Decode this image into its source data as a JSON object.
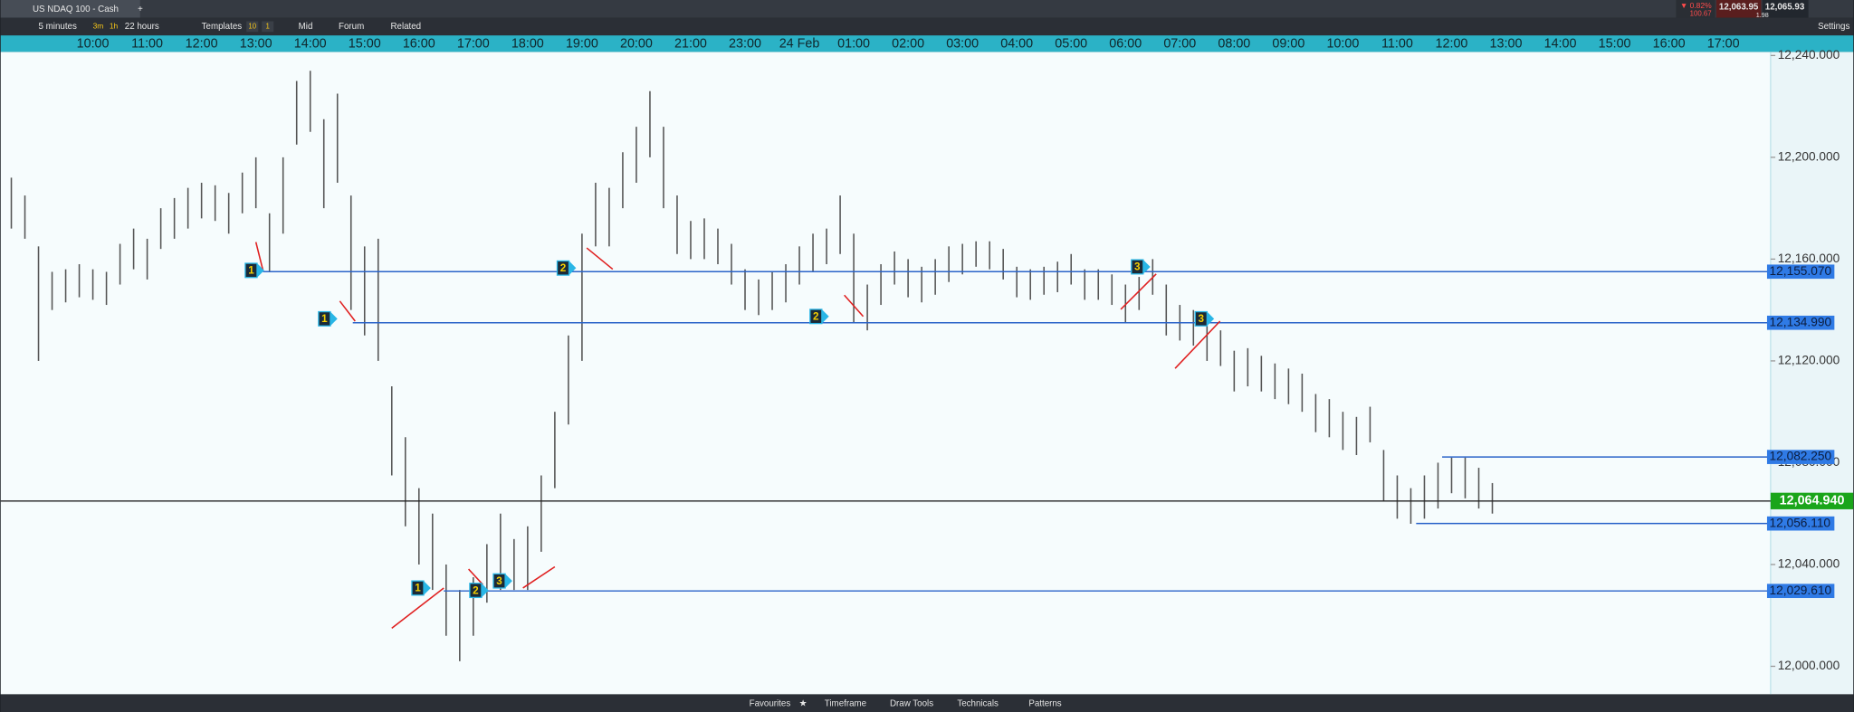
{
  "header": {
    "title": "US NDAQ 100 - Cash",
    "change": "▼ 0.82%",
    "change_points": "100.67",
    "sell": "12,063.95",
    "buy": "12,065.93",
    "spread": "1.98",
    "settings": "Settings"
  },
  "toolbar": {
    "timeframe": "5 minutes",
    "quick_3m": "3m",
    "quick_1h": "1h",
    "range": "22 hours",
    "templates": "Templates",
    "badge_a": "10",
    "badge_b": "1",
    "mid": "Mid",
    "forum": "Forum",
    "related": "Related"
  },
  "footer": {
    "favourites": "Favourites",
    "timeframe": "Timeframe",
    "draw_tools": "Draw Tools",
    "technicals": "Technicals",
    "patterns": "Patterns"
  },
  "chart": {
    "type": "ohlc",
    "time_labels": [
      "10:00",
      "11:00",
      "12:00",
      "13:00",
      "14:00",
      "15:00",
      "16:00",
      "17:00",
      "18:00",
      "19:00",
      "20:00",
      "21:00",
      "23:00",
      "24 Feb",
      "01:00",
      "02:00",
      "03:00",
      "04:00",
      "05:00",
      "06:00",
      "07:00",
      "08:00",
      "09:00",
      "10:00",
      "11:00",
      "12:00",
      "13:00",
      "14:00",
      "15:00",
      "16:00",
      "17:00"
    ],
    "high": [
      12190,
      12192,
      12185,
      12165,
      12155,
      12156,
      12158,
      12156,
      12155,
      12166,
      12172,
      12168,
      12180,
      12184,
      12188,
      12190,
      12189,
      12186,
      12194,
      12200,
      12178,
      12200,
      12230,
      12234,
      12215,
      12225,
      12185,
      12165,
      12168,
      12110,
      12090,
      12070,
      12060,
      12040,
      12030,
      12035,
      12048,
      12060,
      12050,
      12055,
      12075,
      12100,
      12130,
      12170,
      12190,
      12188,
      12202,
      12212,
      12226,
      12212,
      12185,
      12175,
      12176,
      12172,
      12166,
      12156,
      12152,
      12155,
      12158,
      12165,
      12170,
      12172,
      12185,
      12170,
      12150,
      12158,
      12163,
      12160,
      12157,
      12160,
      12165,
      12166,
      12167,
      12167,
      12164,
      12157,
      12156,
      12157,
      12159,
      12162,
      12156,
      12156,
      12154,
      12150,
      12153,
      12160,
      12150,
      12142,
      12140,
      12135,
      12132,
      12124,
      12125,
      12122,
      12119,
      12117,
      12115,
      12107,
      12105,
      12100,
      12098,
      12102,
      12085,
      12075,
      12070,
      12075,
      12080,
      12082,
      12082,
      12078,
      12072
    ],
    "low": [
      12176,
      12172,
      12168,
      12120,
      12140,
      12143,
      12145,
      12144,
      12142,
      12150,
      12156,
      12152,
      12164,
      12168,
      12172,
      12176,
      12175,
      12170,
      12178,
      12180,
      12155,
      12170,
      12205,
      12210,
      12180,
      12190,
      12140,
      12130,
      12120,
      12075,
      12055,
      12040,
      12030,
      12012,
      12002,
      12012,
      12025,
      12030,
      12030,
      12030,
      12045,
      12070,
      12095,
      12120,
      12165,
      12165,
      12180,
      12190,
      12200,
      12180,
      12162,
      12160,
      12160,
      12158,
      12150,
      12140,
      12138,
      12140,
      12143,
      12150,
      12155,
      12158,
      12162,
      12135,
      12132,
      12142,
      12150,
      12145,
      12143,
      12146,
      12151,
      12154,
      12157,
      12156,
      12152,
      12145,
      12144,
      12146,
      12147,
      12150,
      12144,
      12144,
      12142,
      12135,
      12140,
      12146,
      12130,
      12128,
      12126,
      12120,
      12118,
      12108,
      12110,
      12108,
      12105,
      12103,
      12100,
      12092,
      12090,
      12085,
      12083,
      12088,
      12065,
      12058,
      12056,
      12058,
      12062,
      12068,
      12066,
      12062,
      12060
    ],
    "ylim": [
      11989,
      12241.4
    ],
    "yticks": [
      {
        "value": 12240,
        "label": "12,240.000"
      },
      {
        "value": 12200,
        "label": "12,200.000"
      },
      {
        "value": 12160,
        "label": "12,160.000"
      },
      {
        "value": 12120,
        "label": "12,120.000"
      },
      {
        "value": 12080,
        "label": "12,080.000"
      },
      {
        "value": 12040,
        "label": "12,040.000"
      },
      {
        "value": 12000,
        "label": "12,000.000"
      }
    ],
    "levels": [
      {
        "value": 12155.07,
        "label": "12,155.070"
      },
      {
        "value": 12134.99,
        "label": "12,134.990"
      },
      {
        "value": 12082.25,
        "label": "12,082.250"
      },
      {
        "value": 12056.11,
        "label": "12,056.110"
      },
      {
        "value": 12029.61,
        "label": "12,029.610"
      }
    ],
    "current": {
      "value": 12064.94,
      "label": "12,064.940"
    },
    "markers": [
      "1",
      "1",
      "2",
      "2",
      "3",
      "3",
      "1",
      "2",
      "3"
    ]
  }
}
